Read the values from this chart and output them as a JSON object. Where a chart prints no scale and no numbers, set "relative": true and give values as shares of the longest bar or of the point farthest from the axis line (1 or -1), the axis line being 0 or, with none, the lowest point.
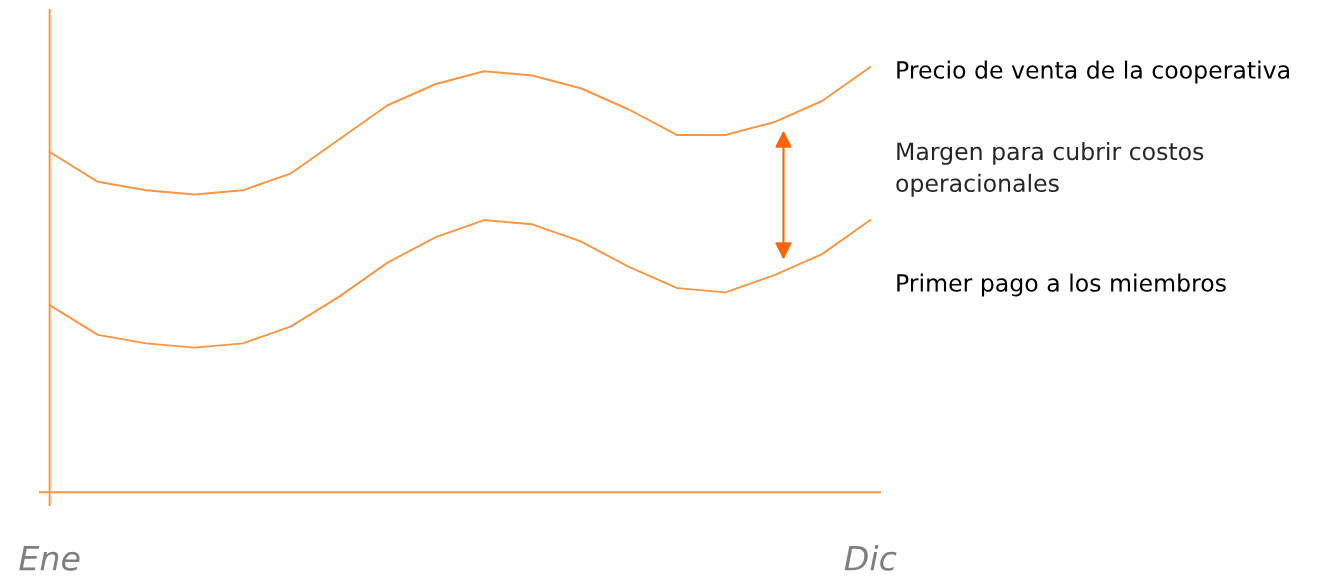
{
  "chart_data": {
    "type": "line",
    "relative": true,
    "categories": [
      "Ene",
      null,
      null,
      null,
      null,
      null,
      null,
      null,
      null,
      null,
      null,
      null,
      null,
      null,
      null,
      null,
      null,
      "Dic"
    ],
    "series": [
      {
        "name": "Precio de venta de la cooperativa",
        "color": "#f79646",
        "values": [
          0.8,
          0.73,
          0.71,
          0.7,
          0.71,
          0.75,
          0.83,
          0.91,
          0.96,
          0.99,
          0.98,
          0.95,
          0.9,
          0.84,
          0.84,
          0.87,
          0.92,
          1.0
        ]
      },
      {
        "name": "Primer pago a los miembros",
        "color": "#f79646",
        "values": [
          0.44,
          0.37,
          0.35,
          0.34,
          0.35,
          0.39,
          0.46,
          0.54,
          0.6,
          0.64,
          0.63,
          0.59,
          0.53,
          0.48,
          0.47,
          0.51,
          0.56,
          0.64
        ]
      }
    ],
    "annotations": [
      "Margen para cubrir costos operacionales"
    ],
    "marker": "none",
    "line_style": "solid",
    "grid": false,
    "legend": false
  }
}
